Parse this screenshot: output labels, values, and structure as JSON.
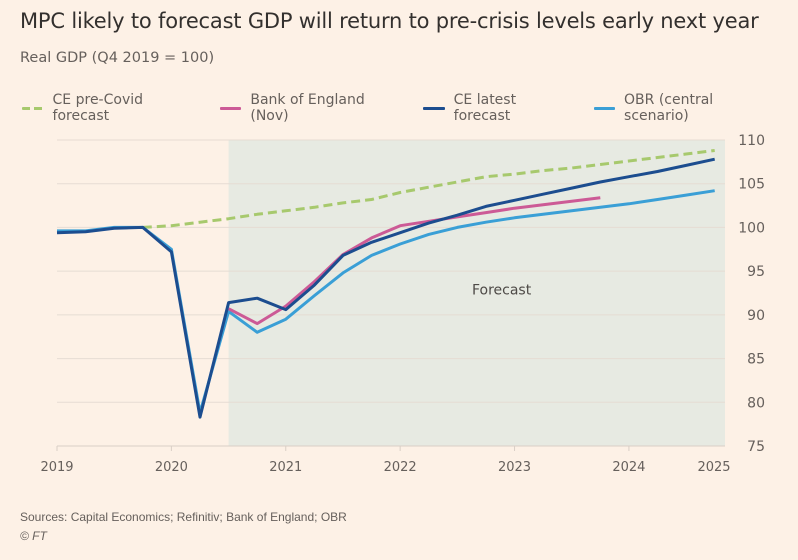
{
  "chart_data": {
    "type": "line",
    "title": "MPC likely to forecast GDP will return to pre-crisis levels early next year",
    "subtitle": "Real GDP (Q4 2019 = 100)",
    "xlabel": "",
    "ylabel": "",
    "xlim": [
      2019.0,
      2024.84
    ],
    "ylim": [
      75,
      110
    ],
    "y_ticks": [
      75,
      80,
      85,
      90,
      95,
      100,
      105,
      110
    ],
    "x_ticks": [
      2019,
      2020,
      2021,
      2022,
      2023,
      2024,
      2025
    ],
    "y_axis_position": "right",
    "grid": true,
    "legend_position": "top",
    "forecast_region": {
      "start": 2020.5,
      "label": "Forecast"
    },
    "series": [
      {
        "name": "CE pre-Covid forecast",
        "color": "#a7c96d",
        "style": "dashed",
        "x": [
          2019.75,
          2020.0,
          2020.25,
          2020.5,
          2020.75,
          2021.0,
          2021.25,
          2021.5,
          2021.75,
          2022.0,
          2022.25,
          2022.5,
          2022.75,
          2023.0,
          2023.25,
          2023.5,
          2023.75,
          2024.0,
          2024.25,
          2024.5,
          2024.75
        ],
        "values": [
          100.0,
          100.2,
          100.6,
          101.0,
          101.5,
          101.9,
          102.3,
          102.8,
          103.2,
          104.0,
          104.6,
          105.2,
          105.8,
          106.1,
          106.5,
          106.8,
          107.2,
          107.6,
          108.0,
          108.4,
          108.8
        ]
      },
      {
        "name": "Bank of England (Nov)",
        "color": "#cc5a96",
        "style": "solid",
        "x": [
          2020.5,
          2020.75,
          2021.0,
          2021.25,
          2021.5,
          2021.75,
          2022.0,
          2022.25,
          2022.5,
          2022.75,
          2023.0,
          2023.25,
          2023.5,
          2023.75
        ],
        "values": [
          90.7,
          89.0,
          91.0,
          93.8,
          96.9,
          98.8,
          100.2,
          100.7,
          101.2,
          101.7,
          102.2,
          102.6,
          103.0,
          103.4
        ]
      },
      {
        "name": "CE latest forecast",
        "color": "#1c4d8f",
        "style": "solid",
        "x": [
          2019.0,
          2019.25,
          2019.5,
          2019.75,
          2020.0,
          2020.25,
          2020.5,
          2020.75,
          2021.0,
          2021.25,
          2021.5,
          2021.75,
          2022.0,
          2022.25,
          2022.5,
          2022.75,
          2023.0,
          2023.25,
          2023.5,
          2023.75,
          2024.0,
          2024.25,
          2024.5,
          2024.75
        ],
        "values": [
          99.4,
          99.5,
          99.9,
          100.0,
          97.2,
          78.3,
          91.4,
          91.9,
          90.6,
          93.4,
          96.8,
          98.3,
          99.4,
          100.5,
          101.4,
          102.4,
          103.1,
          103.8,
          104.5,
          105.2,
          105.8,
          106.4,
          107.1,
          107.8
        ]
      },
      {
        "name": "OBR (central scenario)",
        "color": "#3a9fd6",
        "style": "solid",
        "x": [
          2019.0,
          2019.25,
          2019.5,
          2019.75,
          2020.0,
          2020.25,
          2020.5,
          2020.75,
          2021.0,
          2021.25,
          2021.5,
          2021.75,
          2022.0,
          2022.25,
          2022.5,
          2022.75,
          2023.0,
          2023.25,
          2023.5,
          2023.75,
          2024.0,
          2024.25,
          2024.5,
          2024.75
        ],
        "values": [
          99.6,
          99.6,
          100.0,
          100.0,
          97.5,
          78.8,
          90.4,
          88.0,
          89.5,
          92.2,
          94.8,
          96.8,
          98.1,
          99.2,
          100.0,
          100.6,
          101.1,
          101.5,
          101.9,
          102.3,
          102.7,
          103.2,
          103.7,
          104.2
        ]
      }
    ],
    "source": "Sources: Capital Economics; Refinitiv; Bank of England; OBR",
    "credit": "© FT"
  }
}
